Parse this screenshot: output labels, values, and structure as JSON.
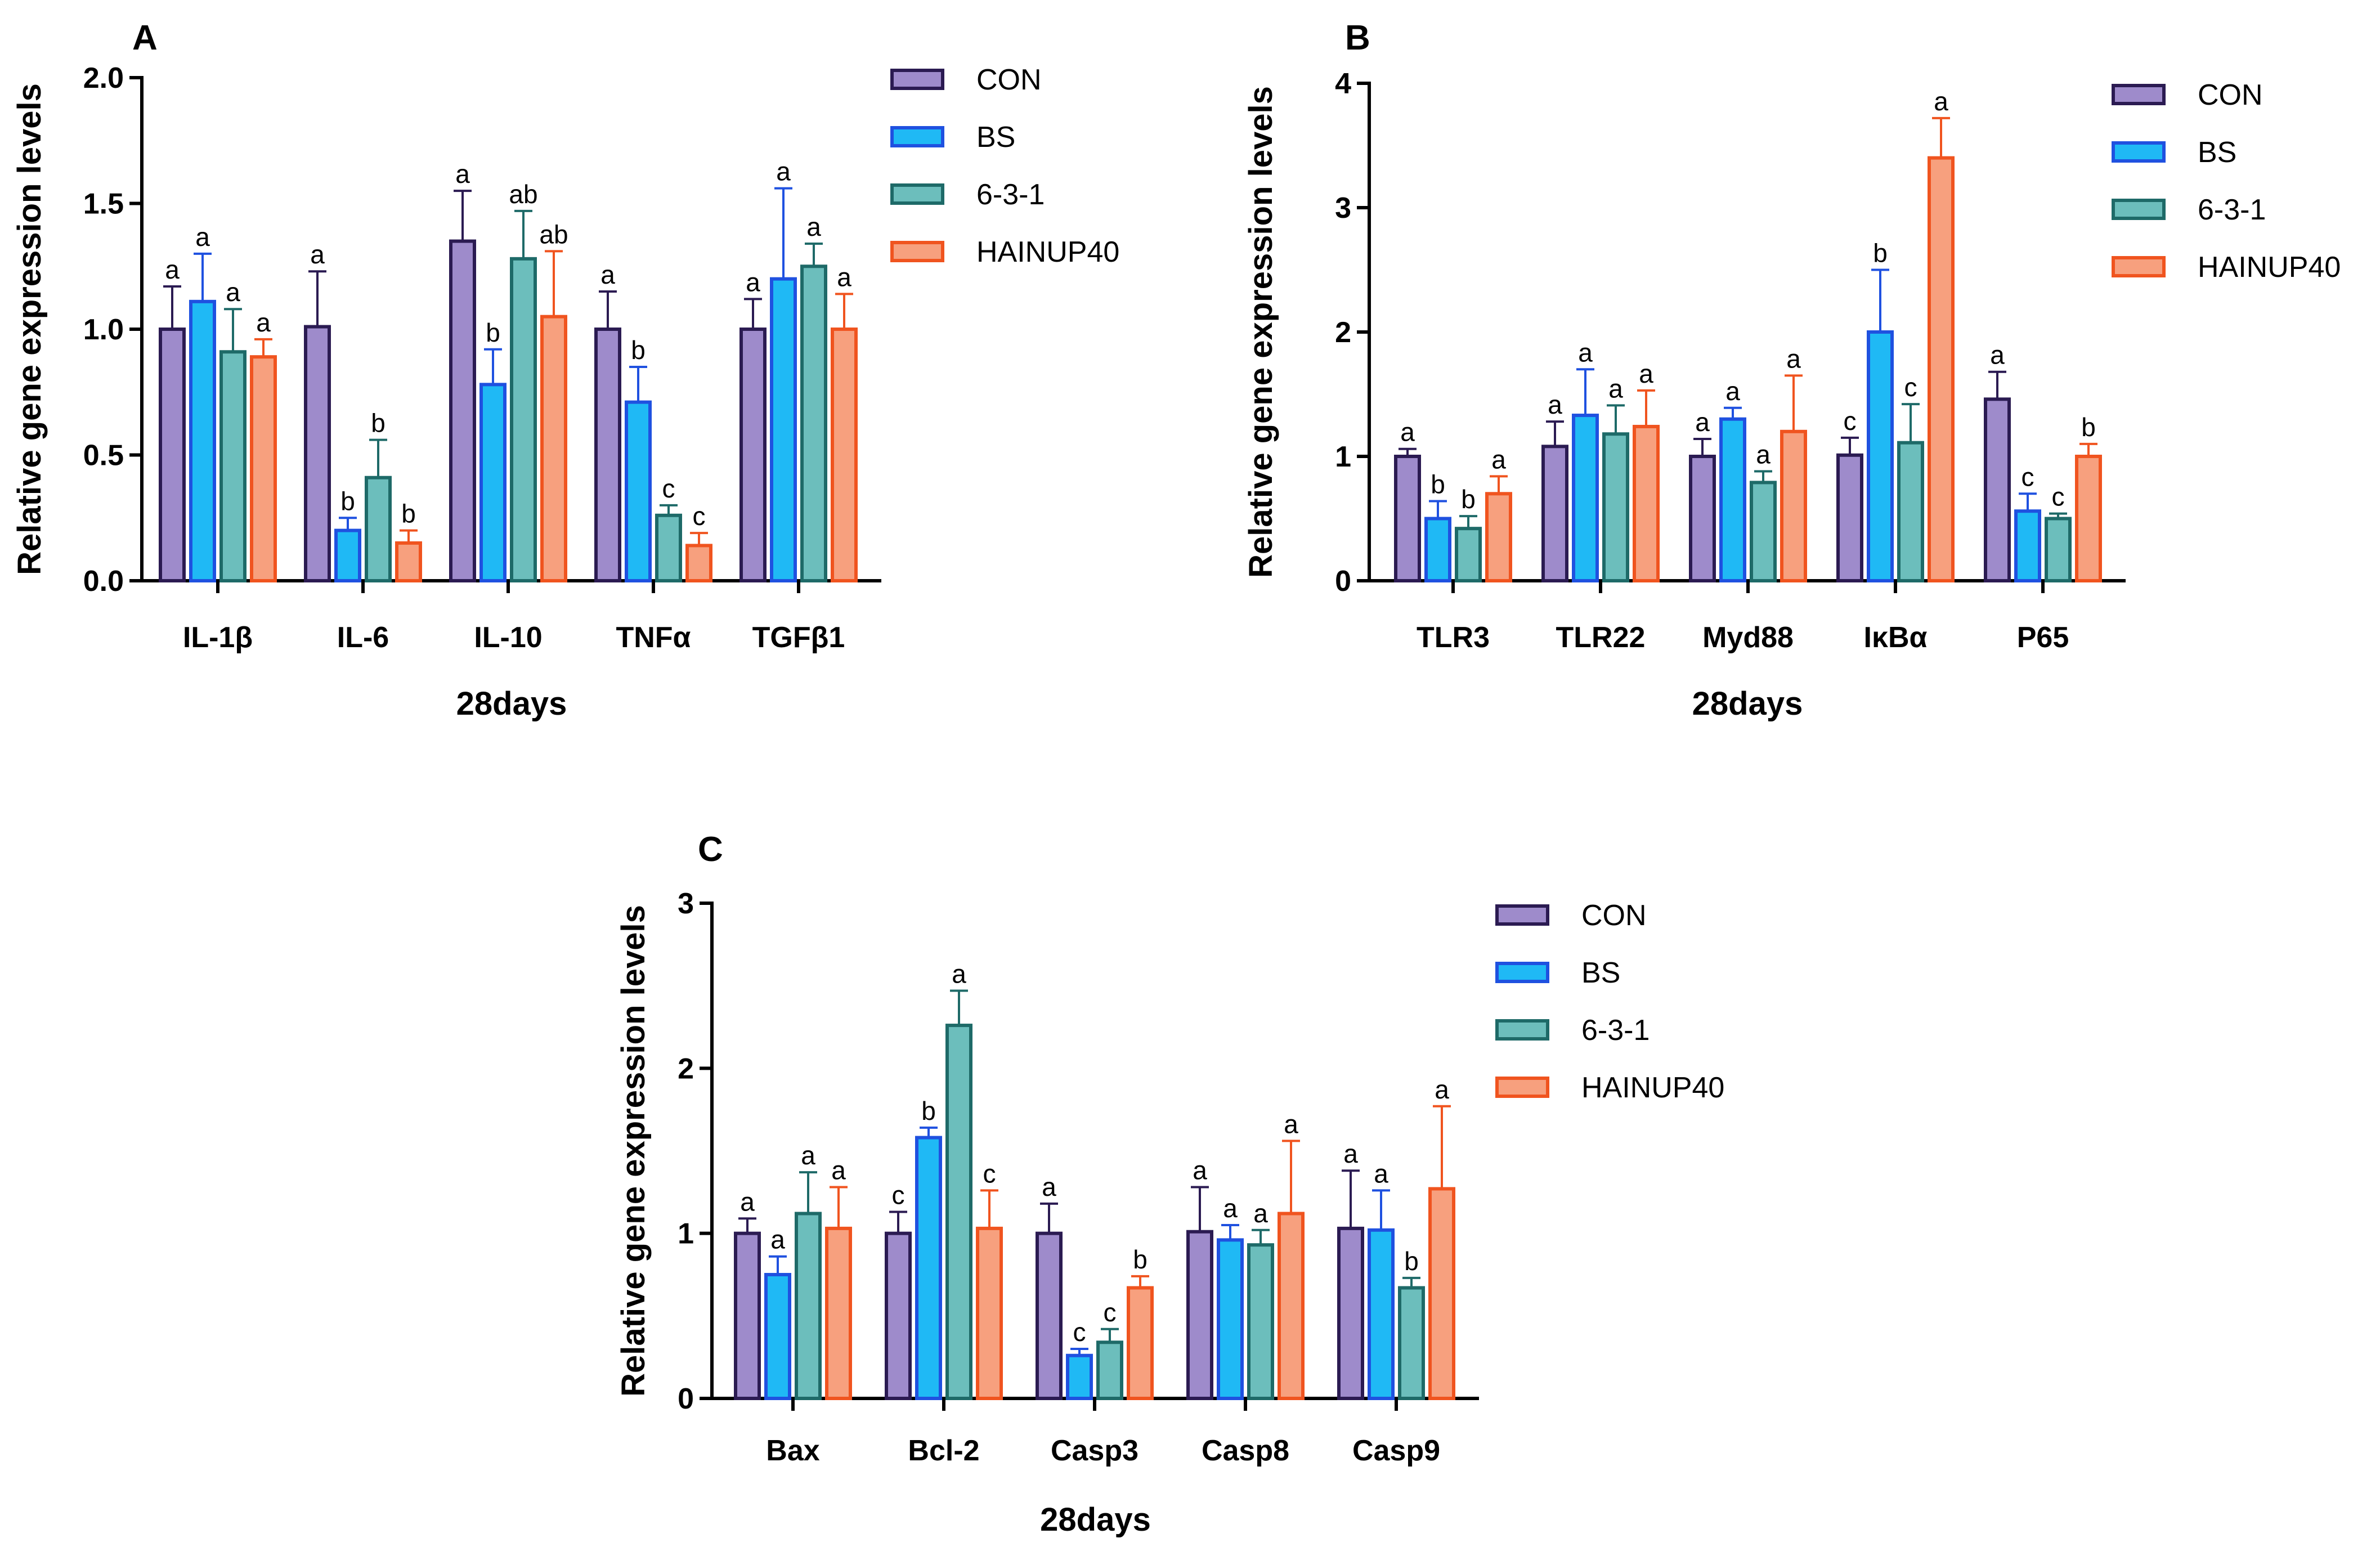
{
  "colors": {
    "CON": {
      "fill": "#9E8BCB",
      "stroke": "#2B1B52"
    },
    "BS": {
      "fill": "#1FB9F5",
      "stroke": "#1F51E0"
    },
    "6-3-1": {
      "fill": "#6CBEBC",
      "stroke": "#1E6A68"
    },
    "HAINUP40": {
      "fill": "#F7A07E",
      "stroke": "#F0541F"
    }
  },
  "chart_data": [
    {
      "type": "bar",
      "panel": "A",
      "xlabel": "28days",
      "ylabel": "Relative gene expression levels",
      "ylim": [
        0,
        2.0
      ],
      "yticks": [
        "0.0",
        "0.5",
        "1.0",
        "1.5",
        "2.0"
      ],
      "categories": [
        "IL-1β",
        "IL-6",
        "IL-10",
        "TNFα",
        "TGFβ1"
      ],
      "series": [
        {
          "name": "CON",
          "values": [
            1.0,
            1.01,
            1.35,
            1.0,
            1.0
          ],
          "errors": [
            0.17,
            0.22,
            0.2,
            0.15,
            0.12
          ],
          "letters": [
            "a",
            "a",
            "a",
            "a",
            "a"
          ]
        },
        {
          "name": "BS",
          "values": [
            1.11,
            0.2,
            0.78,
            0.71,
            1.2
          ],
          "errors": [
            0.19,
            0.05,
            0.14,
            0.14,
            0.36
          ],
          "letters": [
            "a",
            "b",
            "b",
            "b",
            "a"
          ]
        },
        {
          "name": "6-3-1",
          "values": [
            0.91,
            0.41,
            1.28,
            0.26,
            1.25
          ],
          "errors": [
            0.17,
            0.15,
            0.19,
            0.04,
            0.09
          ],
          "letters": [
            "a",
            "b",
            "ab",
            "c",
            "a"
          ]
        },
        {
          "name": "HAINUP40",
          "values": [
            0.89,
            0.15,
            1.05,
            0.14,
            1.0
          ],
          "errors": [
            0.07,
            0.05,
            0.26,
            0.05,
            0.14
          ],
          "letters": [
            "a",
            "b",
            "ab",
            "c",
            "a"
          ]
        }
      ]
    },
    {
      "type": "bar",
      "panel": "B",
      "xlabel": "28days",
      "ylabel": "Relative gene expression levels",
      "ylim": [
        0,
        4
      ],
      "yticks": [
        "0",
        "1",
        "2",
        "3",
        "4"
      ],
      "categories": [
        "TLR3",
        "TLR22",
        "Myd88",
        "IκBα",
        "P65"
      ],
      "series": [
        {
          "name": "CON",
          "values": [
            1.0,
            1.08,
            1.0,
            1.01,
            1.46
          ],
          "errors": [
            0.06,
            0.2,
            0.14,
            0.14,
            0.22
          ],
          "letters": [
            "a",
            "a",
            "a",
            "c",
            "a"
          ]
        },
        {
          "name": "BS",
          "values": [
            0.5,
            1.33,
            1.3,
            2.0,
            0.56
          ],
          "errors": [
            0.14,
            0.37,
            0.09,
            0.5,
            0.14
          ],
          "letters": [
            "b",
            "a",
            "a",
            "b",
            "c"
          ]
        },
        {
          "name": "6-3-1",
          "values": [
            0.42,
            1.18,
            0.79,
            1.11,
            0.5
          ],
          "errors": [
            0.1,
            0.23,
            0.09,
            0.31,
            0.04
          ],
          "letters": [
            "b",
            "a",
            "a",
            "c",
            "c"
          ]
        },
        {
          "name": "HAINUP40",
          "values": [
            0.7,
            1.24,
            1.2,
            3.4,
            1.0
          ],
          "errors": [
            0.14,
            0.29,
            0.45,
            0.32,
            0.1
          ],
          "letters": [
            "a",
            "a",
            "a",
            "a",
            "b"
          ]
        }
      ]
    },
    {
      "type": "bar",
      "panel": "C",
      "xlabel": "28days",
      "ylabel": "Relative gene expression levels",
      "ylim": [
        0,
        3
      ],
      "yticks": [
        "0",
        "1",
        "2",
        "3"
      ],
      "categories": [
        "Bax",
        "Bcl-2",
        "Casp3",
        "Casp8",
        "Casp9"
      ],
      "series": [
        {
          "name": "CON",
          "values": [
            1.0,
            1.0,
            1.0,
            1.01,
            1.03
          ],
          "errors": [
            0.09,
            0.13,
            0.18,
            0.27,
            0.35
          ],
          "letters": [
            "a",
            "c",
            "a",
            "a",
            "a"
          ]
        },
        {
          "name": "BS",
          "values": [
            0.75,
            1.58,
            0.26,
            0.96,
            1.02
          ],
          "errors": [
            0.11,
            0.06,
            0.04,
            0.09,
            0.24
          ],
          "letters": [
            "a",
            "b",
            "c",
            "a",
            "a"
          ]
        },
        {
          "name": "6-3-1",
          "values": [
            1.12,
            2.26,
            0.34,
            0.93,
            0.67
          ],
          "errors": [
            0.25,
            0.21,
            0.08,
            0.09,
            0.06
          ],
          "letters": [
            "a",
            "a",
            "c",
            "a",
            "b"
          ]
        },
        {
          "name": "HAINUP40",
          "values": [
            1.03,
            1.03,
            0.67,
            1.12,
            1.27
          ],
          "errors": [
            0.25,
            0.23,
            0.07,
            0.44,
            0.5
          ],
          "letters": [
            "a",
            "c",
            "b",
            "a",
            "a"
          ]
        }
      ]
    }
  ]
}
